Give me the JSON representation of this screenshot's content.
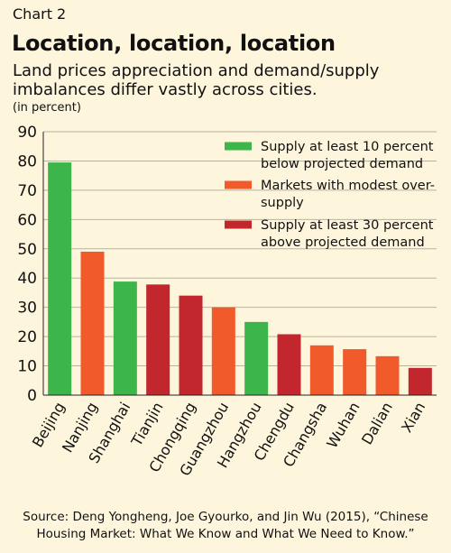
{
  "header": {
    "label": "Chart 2",
    "title": "Location, location, location",
    "subtitle": "Land prices appreciation and demand/supply imbalances differ vastly across cities.",
    "unit": "(in percent)"
  },
  "source": {
    "line1": "Source: Deng Yongheng, Joe Gyourko, and Jin Wu (2015), “Chinese",
    "line2": "Housing Market: What We Know and What We Need to Know.”"
  },
  "colors": {
    "background": "#fdf5dc",
    "undersupply": "#3cb54a",
    "modest": "#f15a2b",
    "oversupply": "#c1272d",
    "gridline": "#b8b39f"
  },
  "chart_data": {
    "type": "bar",
    "categories": [
      "Beijing",
      "Nanjing",
      "Shanghai",
      "Tianjin",
      "Chongqing",
      "Guangzhou",
      "Hangzhou",
      "Chengdu",
      "Changsha",
      "Wuhan",
      "Dalian",
      "Xian"
    ],
    "values": [
      79.5,
      49,
      38.8,
      37.8,
      34,
      30,
      25,
      20.8,
      17,
      15.7,
      13.3,
      9.3
    ],
    "groups": [
      "undersupply",
      "modest",
      "undersupply",
      "oversupply",
      "oversupply",
      "modest",
      "undersupply",
      "oversupply",
      "modest",
      "modest",
      "modest",
      "oversupply"
    ],
    "ylim": [
      0,
      90
    ],
    "yticks": [
      0,
      10,
      20,
      30,
      40,
      50,
      60,
      70,
      80,
      90
    ],
    "grid": true,
    "legend_position": "top-right",
    "legend": [
      {
        "group": "undersupply",
        "lines": [
          "Supply at least 10 percent",
          "below projected demand"
        ]
      },
      {
        "group": "modest",
        "lines": [
          "Markets with modest over-",
          "supply"
        ]
      },
      {
        "group": "oversupply",
        "lines": [
          "Supply at least 30 percent",
          "above projected demand"
        ]
      }
    ]
  }
}
